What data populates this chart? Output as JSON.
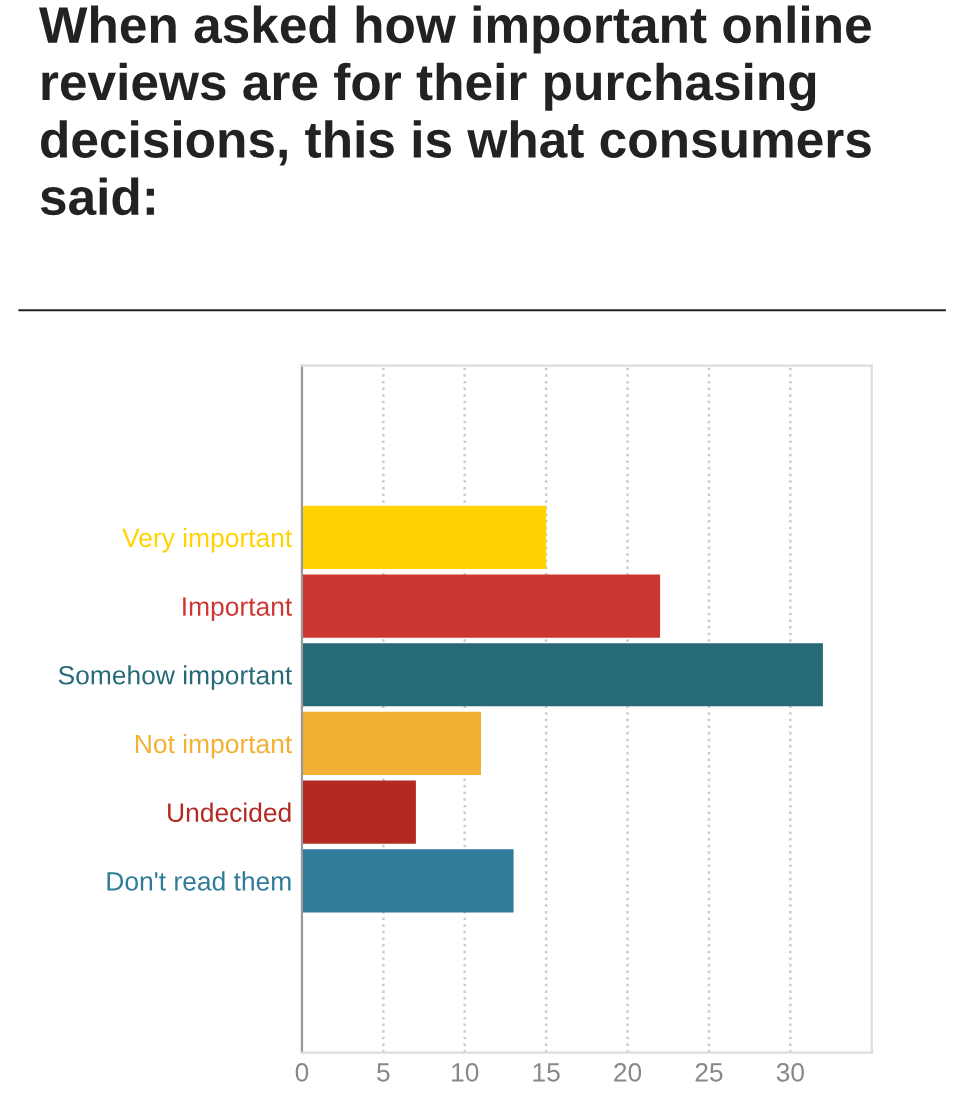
{
  "chart_data": {
    "type": "bar",
    "orientation": "horizontal",
    "title": "When asked how important online reviews are for their purchasing decisions, this is what consumers said:",
    "categories": [
      "Very important",
      "Important",
      "Somehow important",
      "Not important",
      "Undecided",
      "Don't read them"
    ],
    "values": [
      15,
      22,
      32,
      11,
      7,
      13
    ],
    "colors": [
      "#ffd200",
      "#cc3633",
      "#266977",
      "#f2b035",
      "#b22a22",
      "#2f7b99"
    ],
    "xlim": [
      0,
      35
    ],
    "xticks": [
      0,
      5,
      10,
      15,
      20,
      25,
      30
    ],
    "grid": "x"
  }
}
